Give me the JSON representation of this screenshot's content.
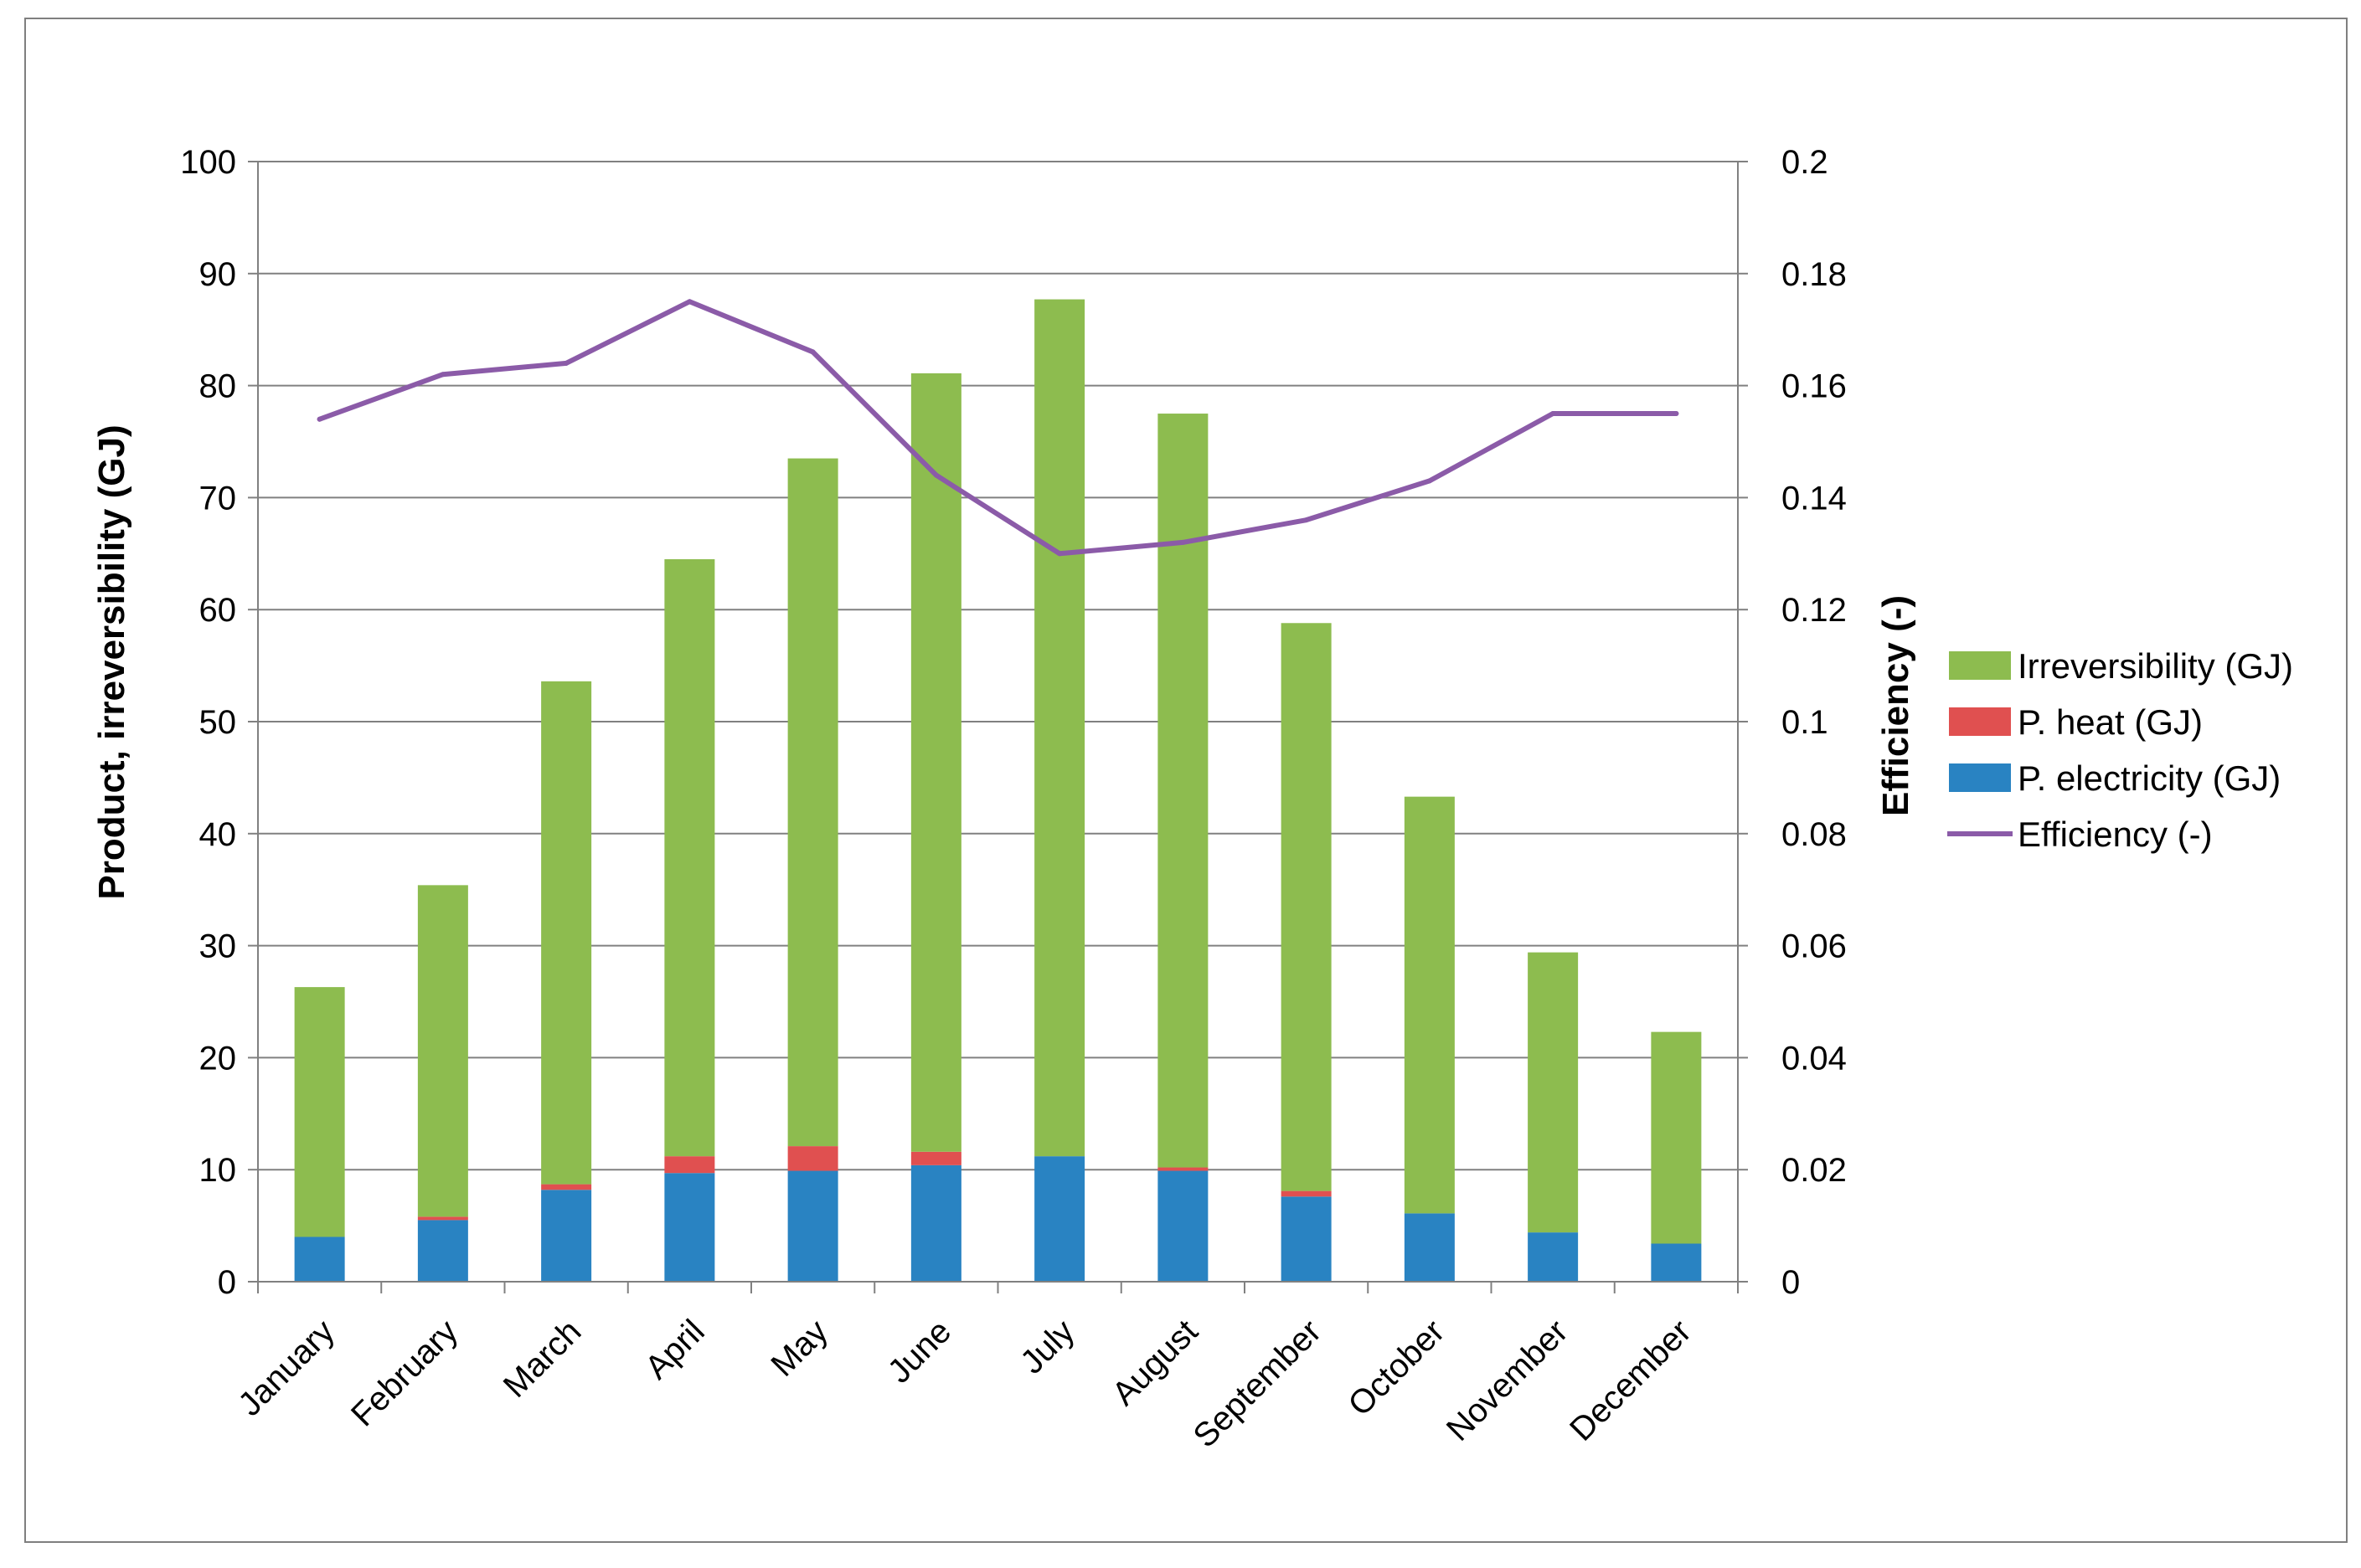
{
  "colors": {
    "irreversibility": "#8DBC4F",
    "heat": "#E05050",
    "electricity": "#2983C2",
    "efficiency": "#8B5BA8",
    "grid": "#808080",
    "axis": "#808080",
    "frame": "#7F7F7F"
  },
  "chart_data": {
    "type": "bar",
    "stacked": true,
    "categories": [
      "January",
      "February",
      "March",
      "April",
      "May",
      "June",
      "July",
      "August",
      "September",
      "October",
      "November",
      "December"
    ],
    "series": [
      {
        "name": "P. electricity (GJ)",
        "axis": "left",
        "kind": "bar",
        "values": [
          4.0,
          5.5,
          8.2,
          9.7,
          9.9,
          10.4,
          11.2,
          9.9,
          7.6,
          6.1,
          4.4,
          3.4
        ]
      },
      {
        "name": "P. heat (GJ)",
        "axis": "left",
        "kind": "bar",
        "values": [
          0.0,
          0.3,
          0.5,
          1.5,
          2.2,
          1.2,
          0.0,
          0.3,
          0.5,
          0.0,
          0.0,
          0.0
        ]
      },
      {
        "name": "Irreversibility (GJ)",
        "axis": "left",
        "kind": "bar",
        "values": [
          22.3,
          29.6,
          44.9,
          53.3,
          61.4,
          69.5,
          76.5,
          67.3,
          50.7,
          37.2,
          25.0,
          18.9
        ]
      },
      {
        "name": "Efficiency (-)",
        "axis": "right",
        "kind": "line",
        "values": [
          0.154,
          0.162,
          0.164,
          0.175,
          0.166,
          0.144,
          0.13,
          0.132,
          0.136,
          0.143,
          0.155,
          0.155
        ]
      }
    ],
    "title": "",
    "xlabel": "",
    "ylabel": "Product, irreversibility (GJ)",
    "y2label": "Efficiency (-)",
    "ylim": [
      0,
      100
    ],
    "y2lim": [
      0,
      0.2
    ],
    "yticks": [
      "0",
      "10",
      "20",
      "30",
      "40",
      "50",
      "60",
      "70",
      "80",
      "90",
      "100"
    ],
    "y2ticks": [
      "0",
      "0.02",
      "0.04",
      "0.06",
      "0.08",
      "0.1",
      "0.12",
      "0.14",
      "0.16",
      "0.18",
      "0.2"
    ],
    "grid": true,
    "legend": {
      "position": "right",
      "entries": [
        "Irreversibility (GJ)",
        "P. heat (GJ)",
        "P. electricity (GJ)",
        "Efficiency (-)"
      ]
    }
  }
}
